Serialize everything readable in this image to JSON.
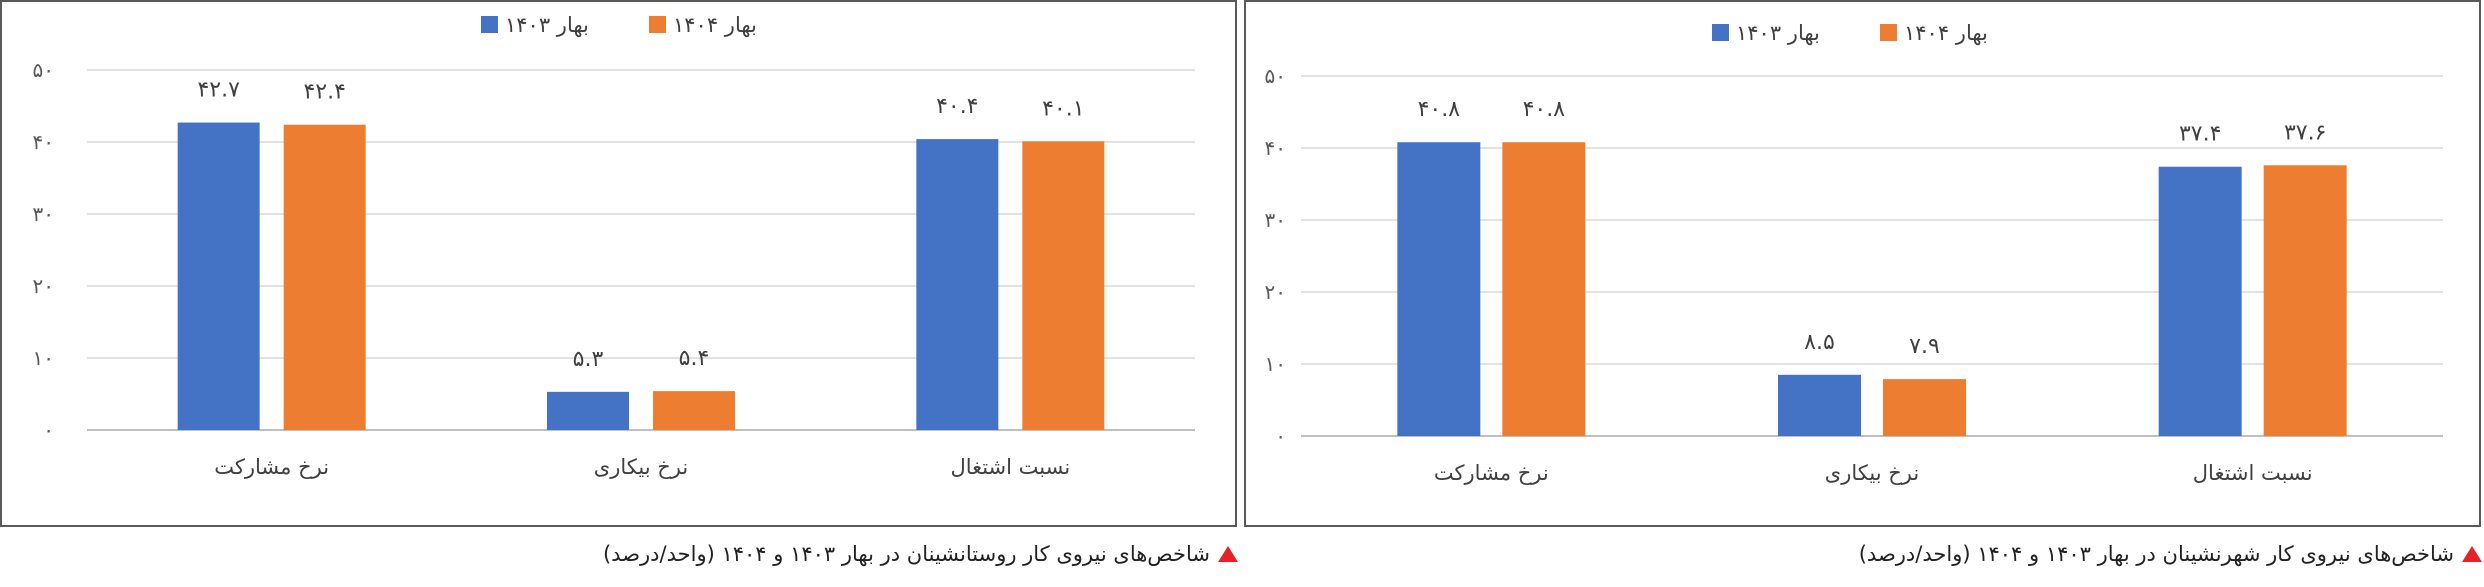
{
  "charts": [
    {
      "caption": "شاخص‌های نیروی کار روستانشینان در بهار ۱۴۰۳ و ۱۴۰۴ (واحد/درصد)",
      "chart_data": {
        "type": "bar",
        "categories": [
          "نرخ مشارکت",
          "نرخ بیکاری",
          "نسبت اشتغال"
        ],
        "series": [
          {
            "name": "بهار ۱۴۰۳",
            "values": [
              42.7,
              5.3,
              40.4
            ],
            "labels": [
              "۴۲.۷",
              "۵.۳",
              "۴۰.۴"
            ],
            "color": "#4472c4"
          },
          {
            "name": "بهار ۱۴۰۴",
            "values": [
              42.4,
              5.4,
              40.1
            ],
            "labels": [
              "۴۲.۴",
              "۵.۴",
              "۴۰.۱"
            ],
            "color": "#ed7d31"
          }
        ],
        "ylim": [
          0,
          50
        ],
        "yticks": [
          0,
          10,
          20,
          30,
          40,
          50
        ],
        "ytick_labels": [
          "۰",
          "۱۰",
          "۲۰",
          "۳۰",
          "۴۰",
          "۵۰"
        ],
        "grid": true,
        "legend": "top"
      }
    },
    {
      "caption": "شاخص‌های نیروی کار شهرنشینان در بهار ۱۴۰۳ و ۱۴۰۴ (واحد/درصد)",
      "chart_data": {
        "type": "bar",
        "categories": [
          "نرخ مشارکت",
          "نرخ بیکاری",
          "نسبت اشتغال"
        ],
        "series": [
          {
            "name": "بهار ۱۴۰۳",
            "values": [
              40.8,
              8.5,
              37.4
            ],
            "labels": [
              "۴۰.۸",
              "۸.۵",
              "۳۷.۴"
            ],
            "color": "#4472c4"
          },
          {
            "name": "بهار ۱۴۰۴",
            "values": [
              40.8,
              7.9,
              37.6
            ],
            "labels": [
              "۴۰.۸",
              "۷.۹",
              "۳۷.۶"
            ],
            "color": "#ed7d31"
          }
        ],
        "ylim": [
          0,
          50
        ],
        "yticks": [
          0,
          10,
          20,
          30,
          40,
          50
        ],
        "ytick_labels": [
          "۰",
          "۱۰",
          "۲۰",
          "۳۰",
          "۴۰",
          "۵۰"
        ],
        "grid": true,
        "legend": "top"
      }
    }
  ]
}
